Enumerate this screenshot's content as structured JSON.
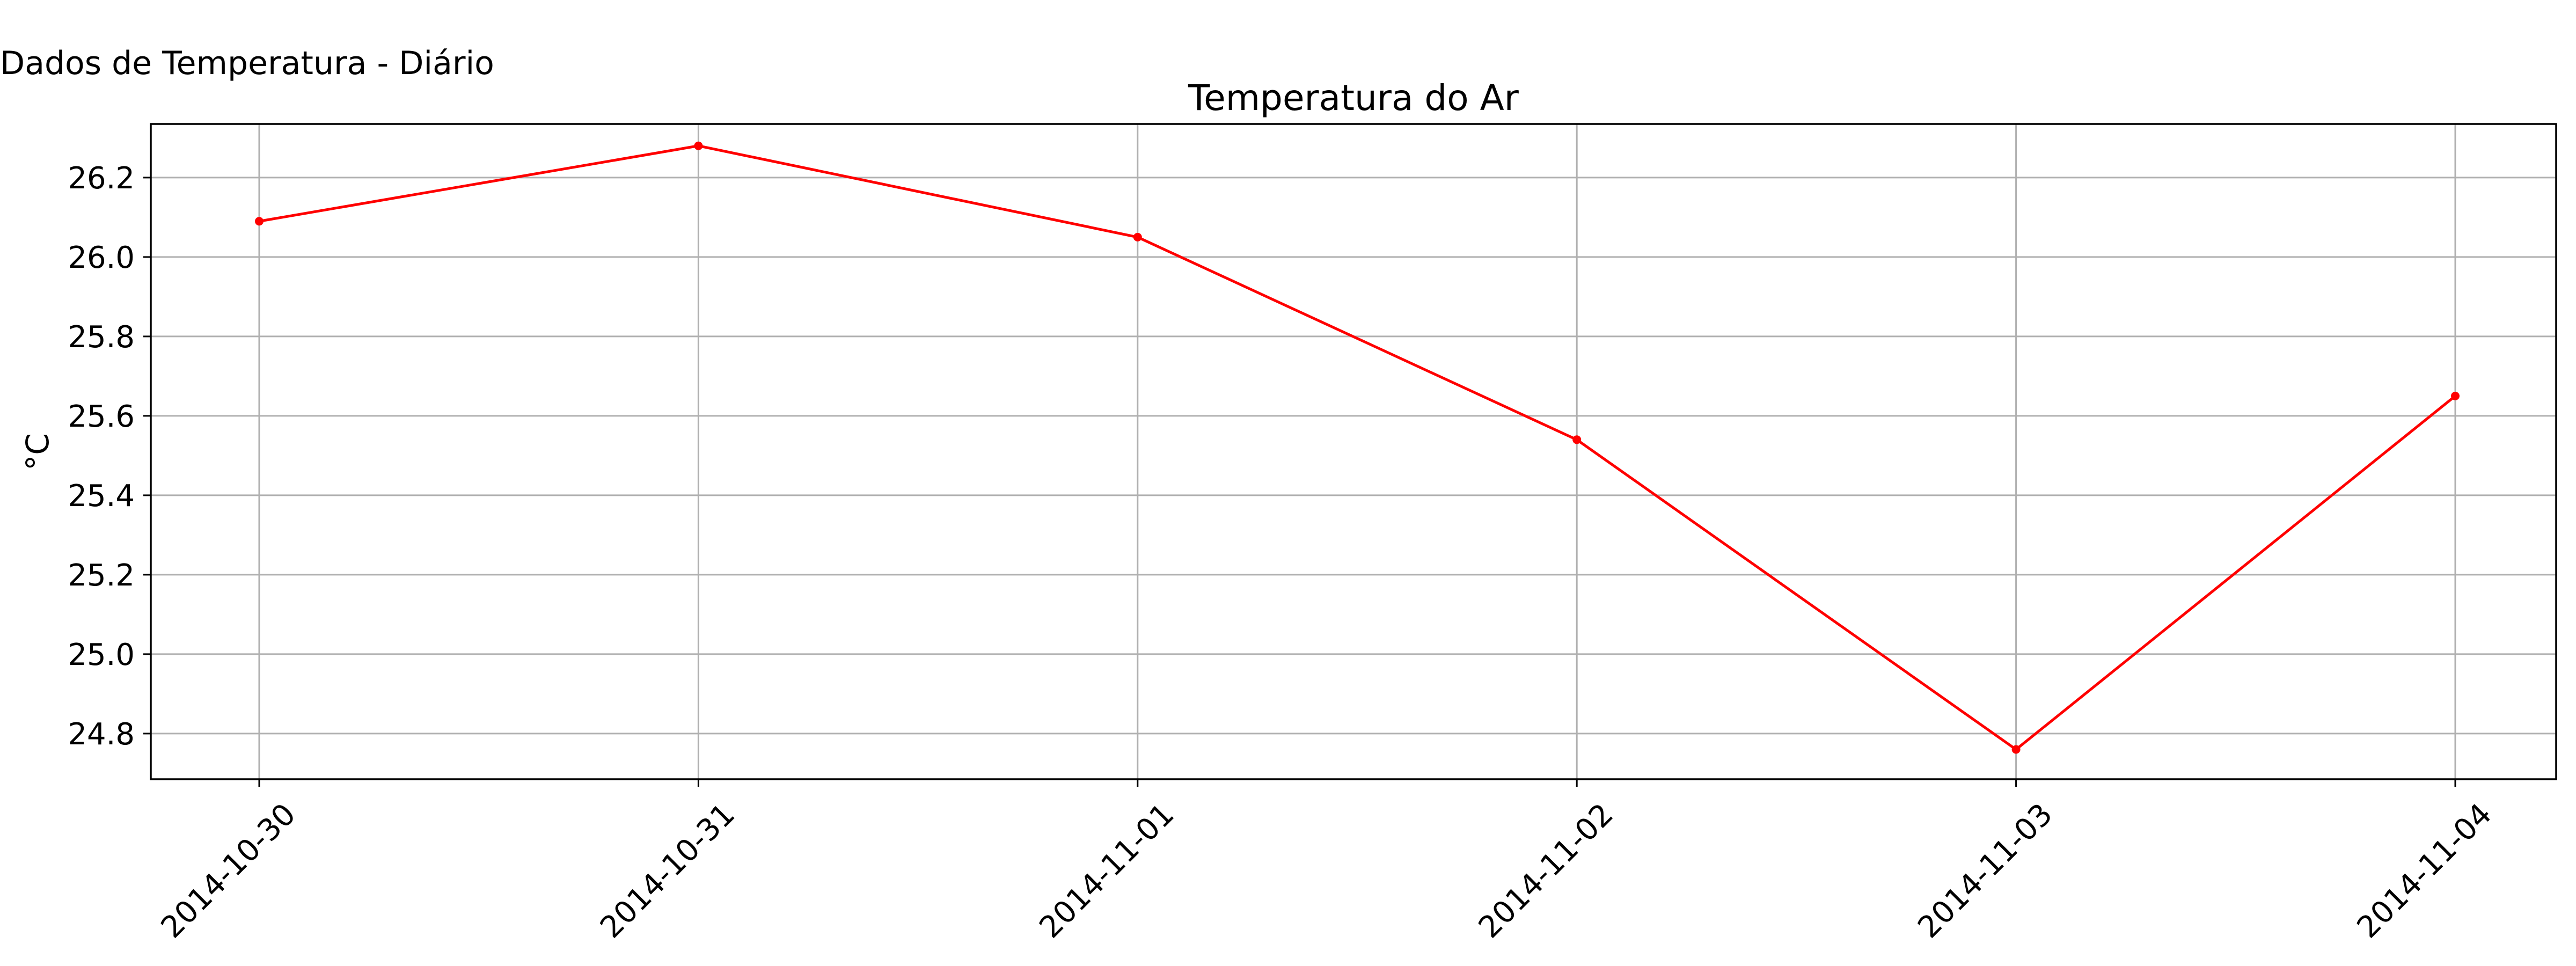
{
  "figure": {
    "suptitle": "Dados de Temperatura - Diário"
  },
  "chart_data": {
    "type": "line",
    "title": "Temperatura do Ar",
    "xlabel": "",
    "ylabel": "°C",
    "x": [
      "2014-10-30",
      "2014-10-31",
      "2014-11-01",
      "2014-11-02",
      "2014-11-03",
      "2014-11-04"
    ],
    "series": [
      {
        "values": [
          26.09,
          26.28,
          26.05,
          25.54,
          24.76,
          25.65
        ],
        "color": "#ff0000",
        "marker": "point"
      }
    ],
    "yticks": [
      24.8,
      25.0,
      25.2,
      25.4,
      25.6,
      25.8,
      26.0,
      26.2
    ],
    "ytick_labels": [
      "24.8",
      "25.0",
      "25.2",
      "25.4",
      "25.6",
      "25.8",
      "26.0",
      "26.2"
    ],
    "xtick_labels": [
      "2014-10-30",
      "2014-10-31",
      "2014-11-01",
      "2014-11-02",
      "2014-11-03",
      "2014-11-04"
    ],
    "ylim": [
      24.685,
      26.335
    ],
    "grid": true,
    "legend": "none"
  }
}
